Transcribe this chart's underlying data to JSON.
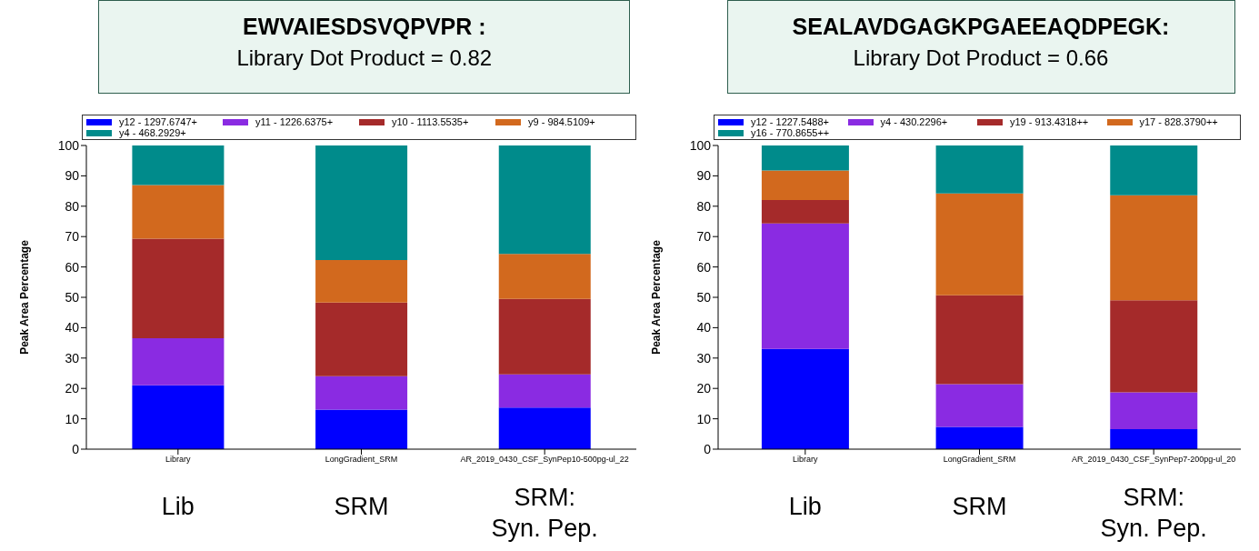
{
  "chart_data": [
    {
      "type": "bar",
      "title": "EWVAIESDSVQPVPR :",
      "subtitle": "Library Dot Product = 0.82",
      "ylabel": "Peak Area Percentage",
      "stacked": true,
      "legend": "top",
      "grid": false,
      "categories": [
        "Library",
        "LongGradient_SRM",
        "AR_2019_0430_CSF_SynPep10-500pg-ul_22"
      ],
      "series": [
        {
          "name": "y12 - 1297.6747+",
          "color": "#0000ff",
          "values": [
            21,
            13,
            13.7
          ]
        },
        {
          "name": "y11 - 1226.6375+",
          "color": "#8a2be2",
          "values": [
            15.5,
            11,
            10.9
          ]
        },
        {
          "name": "y10 - 1113.5535+",
          "color": "#a52a2a",
          "values": [
            32.8,
            24.3,
            24.9
          ]
        },
        {
          "name": "y9 - 984.5109+",
          "color": "#d2691e",
          "values": [
            17.7,
            14,
            14.8
          ]
        },
        {
          "name": "y4 - 468.2929+",
          "color": "#008b8b",
          "values": [
            13,
            37.7,
            35.7
          ]
        }
      ],
      "ylim": [
        0,
        100
      ],
      "yticks": [
        0,
        10,
        20,
        30,
        40,
        50,
        60,
        70,
        80,
        90,
        100
      ],
      "annotations": [
        "Lib",
        "SRM",
        "SRM:\nSyn. Pep."
      ]
    },
    {
      "type": "bar",
      "title": "SEALAVDGAGKPGAEEAQDPEGK:",
      "subtitle": "Library Dot Product = 0.66",
      "ylabel": "Peak Area Percentage",
      "stacked": true,
      "legend": "top",
      "grid": false,
      "categories": [
        "Library",
        "LongGradient_SRM",
        "AR_2019_0430_CSF_SynPep7-200pg-ul_20"
      ],
      "series": [
        {
          "name": "y12 - 1227.5488+",
          "color": "#0000ff",
          "values": [
            33,
            7.3,
            6.6
          ]
        },
        {
          "name": "y4 - 430.2296+",
          "color": "#8a2be2",
          "values": [
            41.3,
            14.1,
            12.1
          ]
        },
        {
          "name": "y19 - 913.4318++",
          "color": "#a52a2a",
          "values": [
            7.7,
            29.3,
            30.3
          ]
        },
        {
          "name": "y17 - 828.3790++",
          "color": "#d2691e",
          "values": [
            9.8,
            33.5,
            34.6
          ]
        },
        {
          "name": "y16 - 770.8655++",
          "color": "#008b8b",
          "values": [
            8.2,
            15.8,
            16.4
          ]
        }
      ],
      "ylim": [
        0,
        100
      ],
      "yticks": [
        0,
        10,
        20,
        30,
        40,
        50,
        60,
        70,
        80,
        90,
        100
      ],
      "annotations": [
        "Lib",
        "SRM",
        "SRM:\nSyn. Pep."
      ]
    }
  ]
}
